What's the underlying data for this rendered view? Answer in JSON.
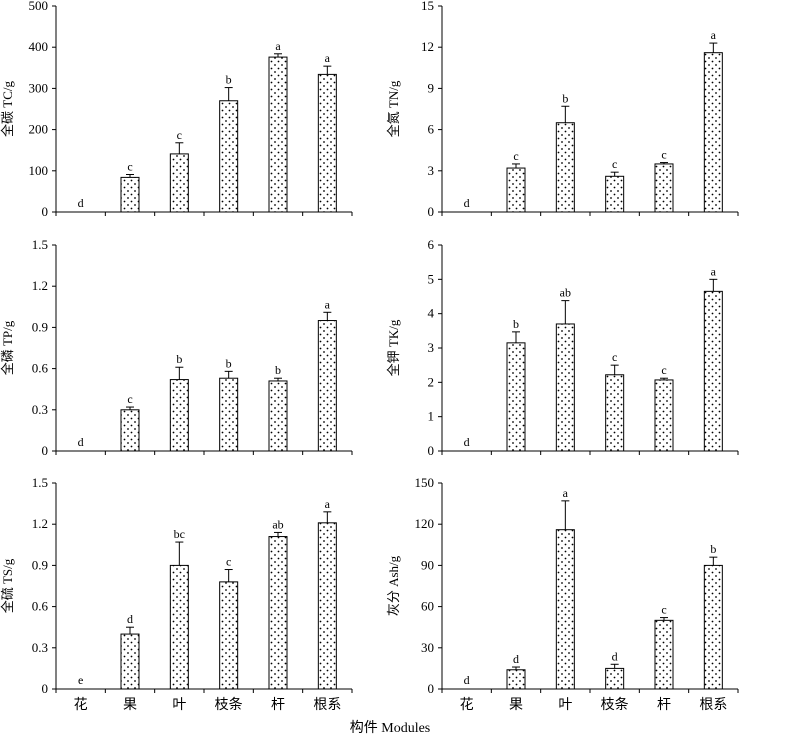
{
  "figure": {
    "xlabel": "构件 Modules"
  },
  "chart_data": [
    {
      "type": "bar",
      "id": "tc",
      "ylabel": "全碳 TC/g",
      "categories": [
        "花",
        "果",
        "叶",
        "枝条",
        "杆",
        "根系"
      ],
      "values": [
        0,
        84,
        141,
        270,
        376,
        334
      ],
      "errors": [
        0,
        7,
        27,
        32,
        8,
        20
      ],
      "significance": [
        "d",
        "c",
        "c",
        "b",
        "a",
        "a"
      ],
      "ylim": [
        0,
        500
      ],
      "yticks": [
        0,
        100,
        200,
        300,
        400,
        500
      ],
      "ytick_labels": [
        "0",
        "100",
        "200",
        "300",
        "400",
        "500"
      ]
    },
    {
      "type": "bar",
      "id": "tn",
      "ylabel": "全氮 TN/g",
      "categories": [
        "花",
        "果",
        "叶",
        "枝条",
        "杆",
        "根系"
      ],
      "values": [
        0,
        3.2,
        6.5,
        2.6,
        3.5,
        11.6
      ],
      "errors": [
        0,
        0.3,
        1.2,
        0.3,
        0.1,
        0.7
      ],
      "significance": [
        "d",
        "c",
        "b",
        "c",
        "c",
        "a"
      ],
      "ylim": [
        0,
        15
      ],
      "yticks": [
        0,
        3,
        6,
        9,
        12,
        15
      ],
      "ytick_labels": [
        "0",
        "3",
        "6",
        "9",
        "12",
        "15"
      ]
    },
    {
      "type": "bar",
      "id": "tp",
      "ylabel": "全磷 TP/g",
      "categories": [
        "花",
        "果",
        "叶",
        "枝条",
        "杆",
        "根系"
      ],
      "values": [
        0,
        0.3,
        0.52,
        0.53,
        0.51,
        0.95
      ],
      "errors": [
        0,
        0.02,
        0.09,
        0.05,
        0.02,
        0.06
      ],
      "significance": [
        "d",
        "c",
        "b",
        "b",
        "b",
        "a"
      ],
      "ylim": [
        0,
        1.5
      ],
      "yticks": [
        0,
        0.3,
        0.6,
        0.9,
        1.2,
        1.5
      ],
      "ytick_labels": [
        "0",
        "0.3",
        "0.6",
        "0.9",
        "1.2",
        "1.5"
      ]
    },
    {
      "type": "bar",
      "id": "tk",
      "ylabel": "全钾 TK/g",
      "categories": [
        "花",
        "果",
        "叶",
        "枝条",
        "杆",
        "根系"
      ],
      "values": [
        0,
        3.15,
        3.7,
        2.22,
        2.07,
        4.65
      ],
      "errors": [
        0,
        0.32,
        0.68,
        0.28,
        0.05,
        0.35
      ],
      "significance": [
        "d",
        "b",
        "ab",
        "c",
        "c",
        "a"
      ],
      "ylim": [
        0,
        6
      ],
      "yticks": [
        0,
        1,
        2,
        3,
        4,
        5,
        6
      ],
      "ytick_labels": [
        "0",
        "1",
        "2",
        "3",
        "4",
        "5",
        "6"
      ]
    },
    {
      "type": "bar",
      "id": "ts",
      "ylabel": "全硫 TS/g",
      "categories": [
        "花",
        "果",
        "叶",
        "枝条",
        "杆",
        "根系"
      ],
      "values": [
        0,
        0.4,
        0.9,
        0.78,
        1.11,
        1.21
      ],
      "errors": [
        0,
        0.05,
        0.17,
        0.09,
        0.03,
        0.08
      ],
      "significance": [
        "e",
        "d",
        "bc",
        "c",
        "ab",
        "a"
      ],
      "ylim": [
        0,
        1.5
      ],
      "yticks": [
        0,
        0.3,
        0.6,
        0.9,
        1.2,
        1.5
      ],
      "ytick_labels": [
        "0",
        "0.3",
        "0.6",
        "0.9",
        "1.2",
        "1.5"
      ]
    },
    {
      "type": "bar",
      "id": "ash",
      "ylabel": "灰分 Ash/g",
      "categories": [
        "花",
        "果",
        "叶",
        "枝条",
        "杆",
        "根系"
      ],
      "values": [
        0,
        14,
        116,
        15,
        50,
        90
      ],
      "errors": [
        0,
        2,
        21,
        3,
        2,
        6
      ],
      "significance": [
        "d",
        "d",
        "a",
        "d",
        "c",
        "b"
      ],
      "ylim": [
        0,
        150
      ],
      "yticks": [
        0,
        30,
        60,
        90,
        120,
        150
      ],
      "ytick_labels": [
        "0",
        "30",
        "60",
        "90",
        "120",
        "150"
      ]
    }
  ]
}
